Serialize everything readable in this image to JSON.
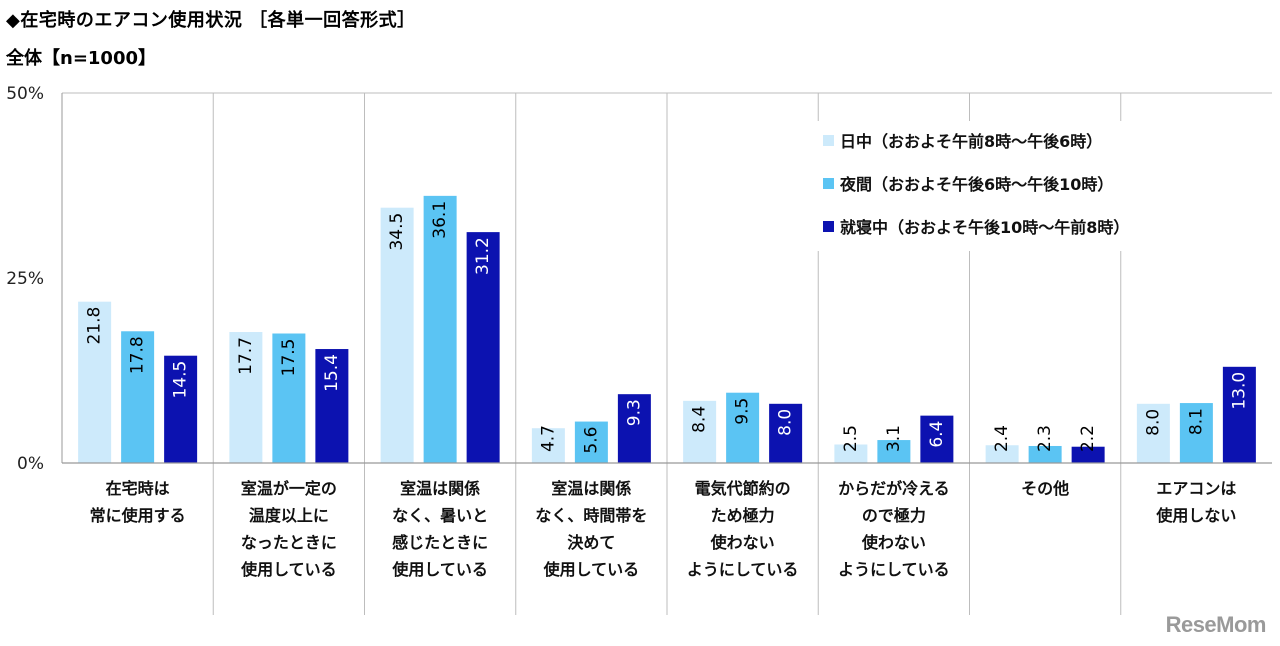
{
  "header": {
    "title": "◆在宅時のエアコン使用状況 ［各単一回答形式］",
    "subtitle": "全体【n=1000】"
  },
  "logo_text": "ReseMom",
  "colors": {
    "series": [
      "#cdeafb",
      "#5bc4f3",
      "#0c12b0"
    ],
    "grid": "#bdbdbd",
    "axis": "#999999"
  },
  "chart_data": {
    "type": "bar",
    "categories": [
      [
        "在宅時は",
        "常に使用する"
      ],
      [
        "室温が一定の",
        "温度以上に",
        "なったときに",
        "使用している"
      ],
      [
        "室温は関係",
        "なく、暑いと",
        "感じたときに",
        "使用している"
      ],
      [
        "室温は関係",
        "なく、時間帯を",
        "決めて",
        "使用している"
      ],
      [
        "電気代節約の",
        "ため極力",
        "使わない",
        "ようにしている"
      ],
      [
        "からだが冷える",
        "ので極力",
        "使わない",
        "ようにしている"
      ],
      [
        "その他"
      ],
      [
        "エアコンは",
        "使用しない"
      ]
    ],
    "series": [
      {
        "name": "日中（おおよそ午前8時～午後6時）",
        "values": [
          21.8,
          17.7,
          34.5,
          4.7,
          8.4,
          2.5,
          2.4,
          8.0
        ]
      },
      {
        "name": "夜間（おおよそ午後6時～午後10時）",
        "values": [
          17.8,
          17.5,
          36.1,
          5.6,
          9.5,
          3.1,
          2.3,
          8.1
        ]
      },
      {
        "name": "就寝中（おおよそ午後10時～午前8時）",
        "values": [
          14.5,
          15.4,
          31.2,
          9.3,
          8.0,
          6.4,
          2.2,
          13.0
        ]
      }
    ],
    "value_labels": [
      [
        "21.8",
        "17.7",
        "34.5",
        "4.7",
        "8.4",
        "2.5",
        "2.4",
        "8.0"
      ],
      [
        "17.8",
        "17.5",
        "36.1",
        "5.6",
        "9.5",
        "3.1",
        "2.3",
        "8.1"
      ],
      [
        "14.5",
        "15.4",
        "31.2",
        "9.3",
        "8.0",
        "6.4",
        "2.2",
        "13.0"
      ]
    ],
    "y_ticks": [
      {
        "value": 0,
        "label": "0%"
      },
      {
        "value": 25,
        "label": "25%"
      },
      {
        "value": 50,
        "label": "50%"
      }
    ],
    "ylim": [
      0,
      50
    ],
    "legend_placement": "top-right",
    "grid": true
  }
}
